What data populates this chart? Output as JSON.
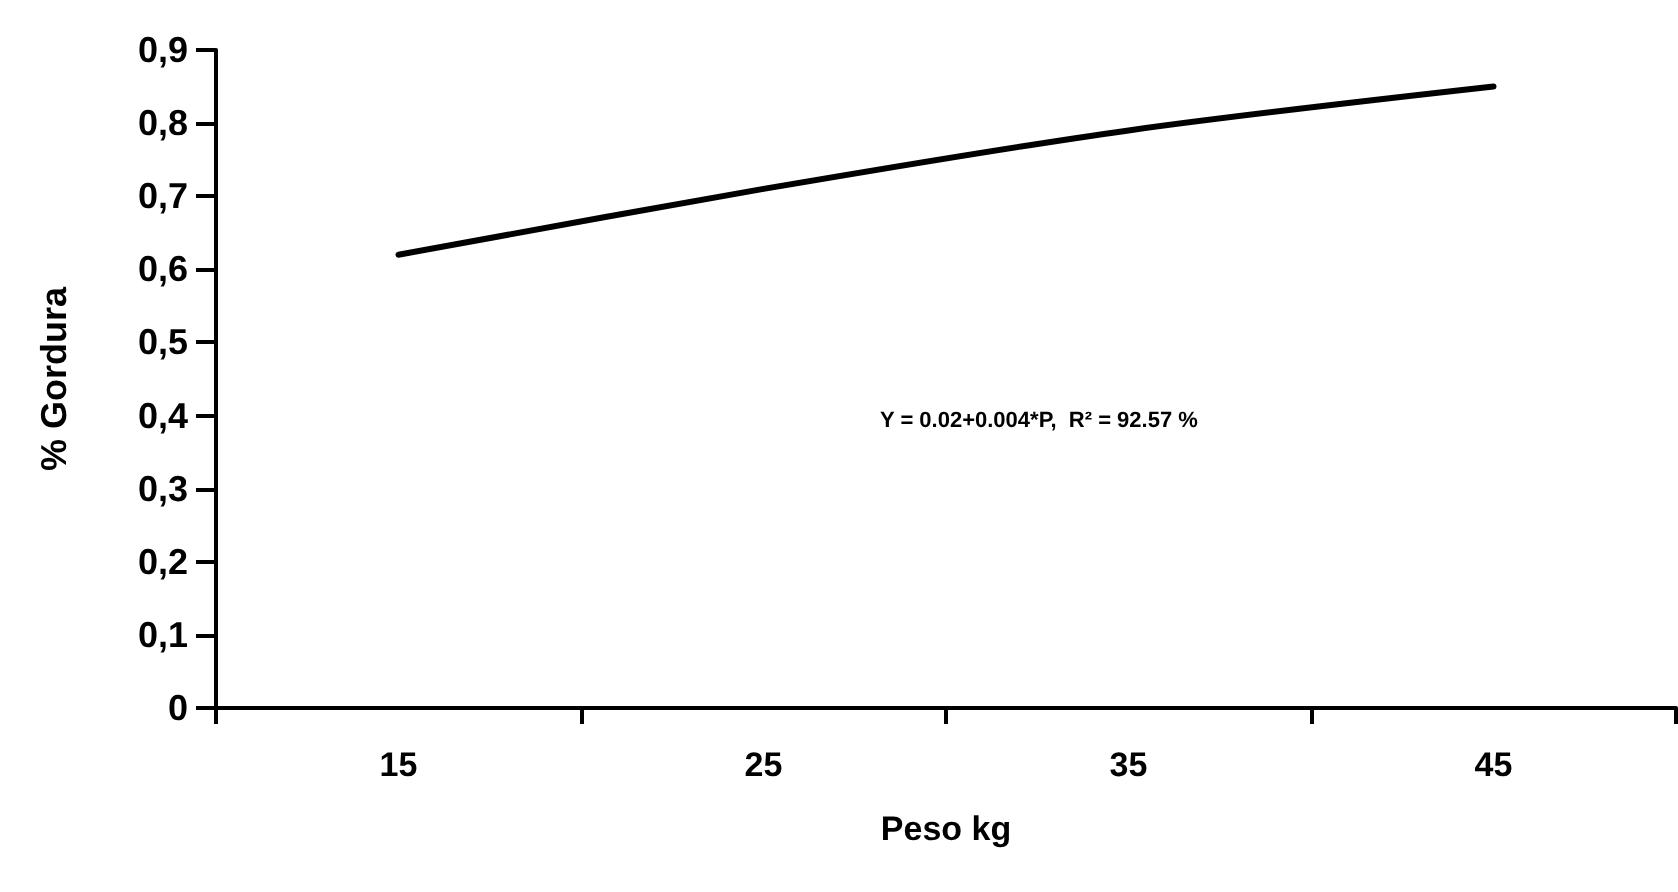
{
  "chart_data": {
    "type": "line",
    "xlabel": "Peso kg",
    "ylabel": "% Gordura",
    "categories": [
      "15",
      "25",
      "35",
      "45"
    ],
    "series": [
      {
        "color": "#000000",
        "values": [
          0.62,
          0.71,
          0.79,
          0.85
        ]
      }
    ],
    "ylim": [
      0,
      0.9
    ],
    "yticks": [
      0,
      {
        "value": 0.1,
        "label": "0,1"
      },
      {
        "value": 0.2,
        "label": "0,2"
      },
      {
        "value": 0.3,
        "label": "0,3"
      },
      {
        "value": 0.4,
        "label": "0,4"
      },
      {
        "value": 0.5,
        "label": "0,5"
      },
      {
        "value": 0.6,
        "label": "0,6"
      },
      {
        "value": 0.7,
        "label": "0,7"
      },
      {
        "value": 0.8,
        "label": "0,8"
      },
      {
        "value": 0.9,
        "label": "0,9"
      }
    ],
    "annotations": [
      "Y = 0.02+0.004*P,  R² = 92.57 %"
    ],
    "grid": false,
    "marker": "none",
    "line_style": "solid"
  }
}
